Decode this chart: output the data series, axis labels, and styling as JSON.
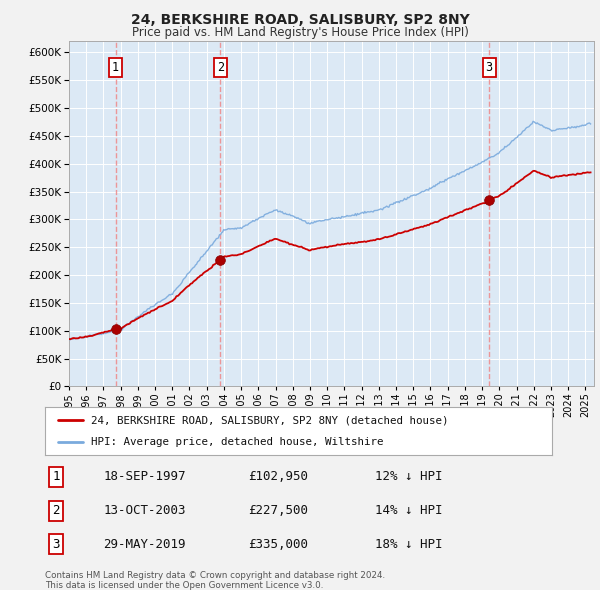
{
  "title": "24, BERKSHIRE ROAD, SALISBURY, SP2 8NY",
  "subtitle": "Price paid vs. HM Land Registry's House Price Index (HPI)",
  "ylim": [
    0,
    620000
  ],
  "yticks": [
    0,
    50000,
    100000,
    150000,
    200000,
    250000,
    300000,
    350000,
    400000,
    450000,
    500000,
    550000,
    600000
  ],
  "background_color": "#dce9f5",
  "sale_prices": [
    102950,
    227500,
    335000
  ],
  "sale_labels": [
    "1",
    "2",
    "3"
  ],
  "legend_house": "24, BERKSHIRE ROAD, SALISBURY, SP2 8NY (detached house)",
  "legend_hpi": "HPI: Average price, detached house, Wiltshire",
  "table_data": [
    [
      "1",
      "18-SEP-1997",
      "£102,950",
      "12% ↓ HPI"
    ],
    [
      "2",
      "13-OCT-2003",
      "£227,500",
      "14% ↓ HPI"
    ],
    [
      "3",
      "29-MAY-2019",
      "£335,000",
      "18% ↓ HPI"
    ]
  ],
  "footnote": "Contains HM Land Registry data © Crown copyright and database right 2024.\nThis data is licensed under the Open Government Licence v3.0.",
  "house_line_color": "#cc0000",
  "hpi_line_color": "#7aaadd",
  "dashed_line_color": "#ee8888",
  "sale_dot_color": "#aa0000",
  "grid_color": "#ffffff",
  "x_start_year": 1995,
  "x_end_year": 2025.5,
  "fig_bg": "#f2f2f2"
}
